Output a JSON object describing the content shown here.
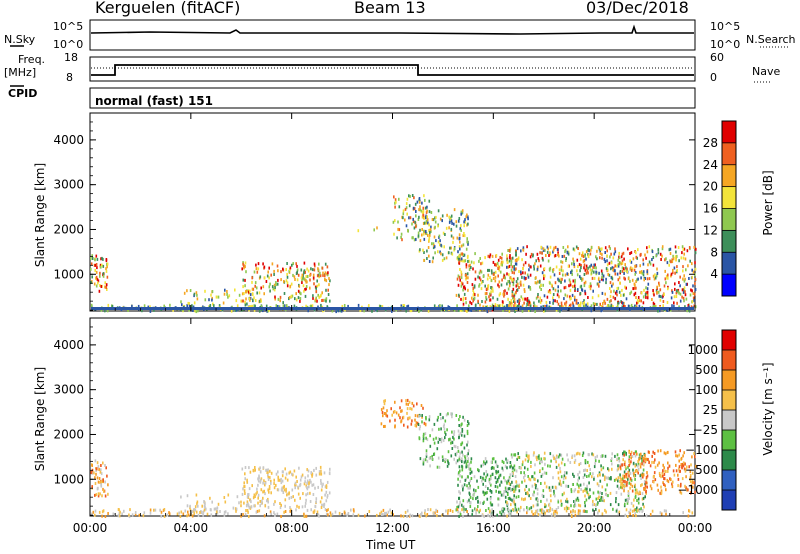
{
  "header": {
    "station": "Kerguelen (fitACF)",
    "beam": "Beam 13",
    "date": "03/Dec/2018"
  },
  "top_panels": {
    "nsky_label": "N.Sky",
    "nsearch_label": "N.Search",
    "noise_ticks_left": [
      "10^5",
      "10^0"
    ],
    "noise_ticks_right": [
      "10^5",
      "10^0"
    ],
    "freq_label_1": "Freq.",
    "freq_label_2": "[MHz]",
    "freq_ticks": [
      "18",
      "8"
    ],
    "nave_label": "Nave",
    "nave_ticks": [
      "60",
      "0"
    ],
    "cpid_label": "CPID",
    "cpid_text": "normal (fast) 151"
  },
  "chart_data": [
    {
      "type": "heatmap",
      "quantity": "Power",
      "ylabel": "Slant Range [km]",
      "xlabel": "Time UT",
      "x_ticks": [
        "00:00",
        "04:00",
        "08:00",
        "12:00",
        "16:00",
        "20:00",
        "00:00"
      ],
      "y_ticks": [
        1000,
        2000,
        3000,
        4000
      ],
      "ylim": [
        180,
        4600
      ],
      "colorbar": {
        "label": "Power [dB]",
        "ticks": [
          "4",
          "8",
          "12",
          "16",
          "20",
          "24",
          "28"
        ],
        "colors": [
          "#0000ff",
          "#2a55a5",
          "#3d8f5a",
          "#8fc850",
          "#f3e43a",
          "#f5a623",
          "#ef6020",
          "#e00000"
        ]
      }
    },
    {
      "type": "heatmap",
      "quantity": "Velocity",
      "ylabel": "Slant Range [km]",
      "xlabel": "Time UT",
      "x_ticks": [
        "00:00",
        "04:00",
        "08:00",
        "12:00",
        "16:00",
        "20:00",
        "00:00"
      ],
      "y_ticks": [
        1000,
        2000,
        3000,
        4000
      ],
      "ylim": [
        180,
        4600
      ],
      "colorbar": {
        "label": "Velocity [m s⁻¹]",
        "ticks": [
          "1000",
          "500",
          "100",
          "25",
          "−25",
          "−100",
          "−500",
          "−1000"
        ],
        "colors": [
          "#1f3fb4",
          "#3060c0",
          "#2d8a4a",
          "#5dc042",
          "#c8c8c8",
          "#f5c04a",
          "#f59a23",
          "#ef5a1e",
          "#e00000"
        ]
      }
    }
  ],
  "footer": {
    "xlabel": "Time UT"
  }
}
